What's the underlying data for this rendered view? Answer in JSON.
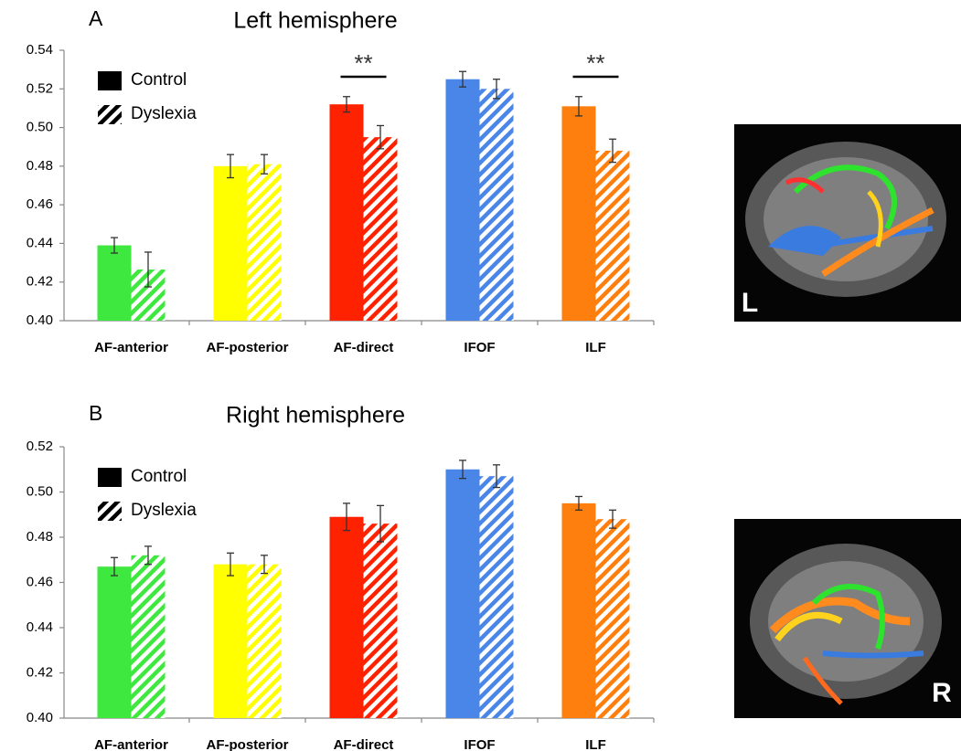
{
  "chart_data": [
    {
      "type": "bar",
      "panel": "A",
      "title": "Left hemisphere",
      "categories": [
        "AF-anterior",
        "AF-posterior",
        "AF-direct",
        "IFOF",
        "ILF"
      ],
      "colors": [
        "#3ee83e",
        "#ffff00",
        "#ff2200",
        "#4a86e8",
        "#ff7f0e"
      ],
      "series": [
        {
          "name": "Control",
          "hatch": false,
          "values": [
            0.439,
            0.48,
            0.512,
            0.525,
            0.511
          ],
          "errors": [
            0.004,
            0.006,
            0.004,
            0.004,
            0.005
          ]
        },
        {
          "name": "Dyslexia",
          "hatch": true,
          "values": [
            0.4265,
            0.481,
            0.495,
            0.52,
            0.488
          ],
          "errors": [
            0.009,
            0.005,
            0.006,
            0.005,
            0.006
          ]
        }
      ],
      "significance": [
        null,
        null,
        "**",
        null,
        "**"
      ],
      "ylim": [
        0.4,
        0.54
      ],
      "yticks": [
        {
          "value": 0.4,
          "label": "0.40"
        },
        {
          "value": 0.42,
          "label": "0.42"
        },
        {
          "value": 0.44,
          "label": "0.44"
        },
        {
          "value": 0.46,
          "label": "0.46"
        },
        {
          "value": 0.48,
          "label": "0.48"
        },
        {
          "value": 0.5,
          "label": "0.50"
        },
        {
          "value": 0.52,
          "label": "0.52"
        },
        {
          "value": 0.54,
          "label": "0.54"
        }
      ],
      "legend": "upper left",
      "grid": false,
      "image_label": "L"
    },
    {
      "type": "bar",
      "panel": "B",
      "title": "Right hemisphere",
      "categories": [
        "AF-anterior",
        "AF-posterior",
        "AF-direct",
        "IFOF",
        "ILF"
      ],
      "colors": [
        "#3ee83e",
        "#ffff00",
        "#ff2200",
        "#4a86e8",
        "#ff7f0e"
      ],
      "series": [
        {
          "name": "Control",
          "hatch": false,
          "values": [
            0.467,
            0.468,
            0.489,
            0.51,
            0.495
          ],
          "errors": [
            0.004,
            0.005,
            0.006,
            0.004,
            0.003
          ]
        },
        {
          "name": "Dyslexia",
          "hatch": true,
          "values": [
            0.472,
            0.468,
            0.486,
            0.507,
            0.488
          ],
          "errors": [
            0.004,
            0.004,
            0.008,
            0.005,
            0.004
          ]
        }
      ],
      "significance": [
        null,
        null,
        null,
        null,
        null
      ],
      "ylim": [
        0.4,
        0.52
      ],
      "yticks": [
        {
          "value": 0.4,
          "label": "0.40"
        },
        {
          "value": 0.42,
          "label": "0.42"
        },
        {
          "value": 0.44,
          "label": "0.44"
        },
        {
          "value": 0.46,
          "label": "0.46"
        },
        {
          "value": 0.48,
          "label": "0.48"
        },
        {
          "value": 0.5,
          "label": "0.50"
        },
        {
          "value": 0.52,
          "label": "0.52"
        }
      ],
      "legend": "upper left",
      "grid": false,
      "image_label": "R"
    }
  ]
}
